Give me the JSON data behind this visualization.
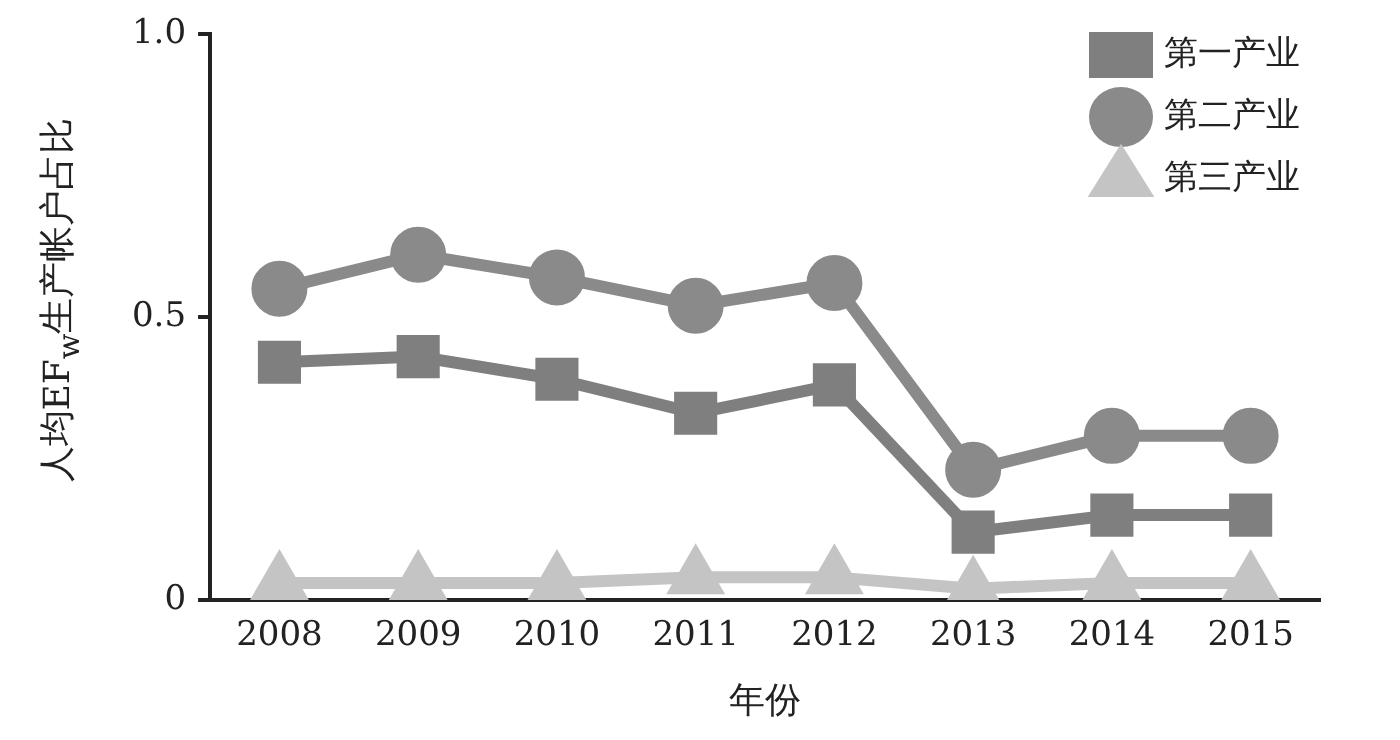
{
  "chart_data": {
    "type": "line",
    "xlabel": "年份",
    "ylabel": "人均EF$_{w}$生产帐户占比",
    "categories": [
      "2008",
      "2009",
      "2010",
      "2011",
      "2012",
      "2013",
      "2014",
      "2015"
    ],
    "series": [
      {
        "name": "第一产业",
        "color": "#7f7f7f",
        "marker": "square",
        "values": [
          0.42,
          0.43,
          0.39,
          0.33,
          0.38,
          0.12,
          0.15,
          0.15
        ]
      },
      {
        "name": "第二产业",
        "color": "#8a8a8a",
        "marker": "circle",
        "values": [
          0.55,
          0.61,
          0.57,
          0.52,
          0.56,
          0.23,
          0.29,
          0.29
        ]
      },
      {
        "name": "第三产业",
        "color": "#c4c4c4",
        "marker": "triangle",
        "values": [
          0.03,
          0.03,
          0.03,
          0.04,
          0.04,
          0.02,
          0.03,
          0.03
        ]
      }
    ],
    "ylim": [
      0,
      1
    ],
    "yticks": [
      0,
      0.5,
      {
        "value": 1,
        "label": "1.0"
      }
    ],
    "grid": false,
    "legend": "top right",
    "line_style": "solid"
  }
}
